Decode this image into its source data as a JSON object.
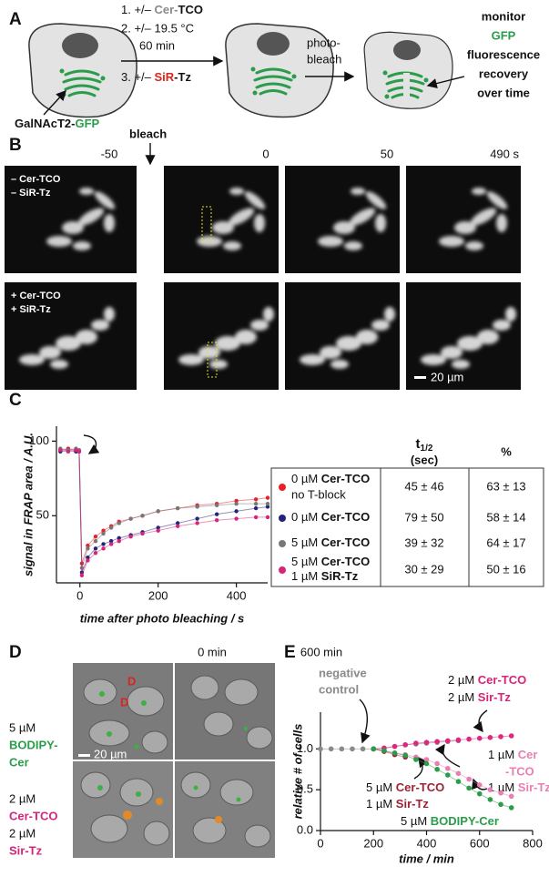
{
  "panel_a": {
    "label": "A",
    "step1": [
      "1.  +/– ",
      "Cer-",
      "TCO"
    ],
    "step2": "2.  +/– 19.5 °C",
    "time": "60 min",
    "step3": [
      "3.  +/– ",
      "SiR",
      "-Tz"
    ],
    "cell_label": [
      "GalNAcT2-",
      "GFP"
    ],
    "bleach_text": [
      "photo-",
      "bleach"
    ],
    "monitor": [
      "monitor",
      "GFP",
      "fluorescence",
      "recovery",
      "over time"
    ]
  },
  "panel_b": {
    "label": "B",
    "bleach": "bleach",
    "times": [
      "-50",
      "0",
      "50",
      "490 s"
    ],
    "rows": [
      [
        "– Cer-TCO",
        "– SiR-Tz"
      ],
      [
        "+ Cer-TCO",
        "+ SiR-Tz"
      ]
    ],
    "scale": "20 µm"
  },
  "panel_c": {
    "label": "C",
    "table": {
      "header": [
        [
          "t",
          "1/2",
          "(sec)"
        ],
        "%"
      ],
      "rows": [
        {
          "label": [
            "0 µM ",
            "Cer-TCO",
            "no T-block"
          ],
          "t_half": "45 ± 46",
          "percent": "63 ± 13"
        },
        {
          "label": [
            "0 µM ",
            "Cer-TCO"
          ],
          "t_half": "79 ± 50",
          "percent": "58 ± 14"
        },
        {
          "label": [
            "5 µM ",
            "Cer-TCO"
          ],
          "t_half": "39 ± 32",
          "percent": "64 ± 17"
        },
        {
          "label": [
            "5 µM ",
            "Cer-TCO",
            "1 µM ",
            "SiR-Tz"
          ],
          "t_half": "30 ± 29",
          "percent": "50 ± 16"
        }
      ]
    }
  },
  "panel_d": {
    "label": "D",
    "times": [
      "0 min",
      "600 min"
    ],
    "marks": [
      "D",
      "D"
    ],
    "scale": "20 µm",
    "rows": [
      [
        "5 µM",
        "BODIPY-",
        "Cer"
      ],
      [
        "2 µM",
        "Cer-TCO",
        "2 µM",
        "Sir-Tz"
      ]
    ]
  },
  "panel_e": {
    "label": "E",
    "notes": [
      [
        "negative",
        "control"
      ],
      [
        "2 µM ",
        "Cer-TCO",
        "2 µM ",
        "Sir-Tz"
      ],
      [
        "1 µM ",
        "Cer",
        "-TCO",
        "1 µM ",
        "Sir-Tz"
      ],
      [
        "5 µM ",
        "Cer-TCO",
        "1 µM ",
        "Sir-Tz"
      ],
      [
        "5 µM ",
        "BODIPY-Cer"
      ]
    ]
  },
  "chart_data": [
    {
      "type": "line",
      "xlabel": "time after photo bleaching / s",
      "ylabel": "signal in FRAP area / A.U.",
      "x": [
        -50,
        -30,
        -10,
        -2,
        5,
        20,
        40,
        60,
        80,
        100,
        130,
        160,
        200,
        250,
        300,
        350,
        400,
        450,
        480
      ],
      "series": [
        {
          "color": "#e8202a",
          "values": [
            94,
            95,
            94,
            93,
            18,
            30,
            36,
            40,
            43,
            46,
            48,
            50,
            53,
            55,
            57,
            58,
            60,
            61,
            62
          ]
        },
        {
          "color": "#23237a",
          "values": [
            93,
            94,
            93,
            93,
            12,
            22,
            28,
            31,
            33,
            35,
            37,
            39,
            42,
            45,
            48,
            51,
            53,
            55,
            56
          ]
        },
        {
          "color": "#777777",
          "values": [
            95,
            94,
            95,
            94,
            15,
            28,
            33,
            38,
            42,
            45,
            48,
            50,
            53,
            55,
            56,
            57,
            58,
            58,
            58
          ]
        },
        {
          "color": "#d6247a",
          "values": [
            94,
            93,
            94,
            93,
            10,
            20,
            25,
            28,
            31,
            33,
            36,
            38,
            40,
            43,
            45,
            47,
            48,
            49,
            49
          ]
        }
      ],
      "xlim": [
        -60,
        480
      ],
      "ylim": [
        5,
        110
      ],
      "xticks": [
        0,
        200,
        400
      ],
      "yticks": [
        50,
        100
      ]
    },
    {
      "type": "line",
      "xlabel": "time / min",
      "ylabel": "relative # of cells",
      "x": [
        0,
        40,
        80,
        120,
        160,
        200,
        240,
        280,
        320,
        360,
        400,
        440,
        480,
        520,
        560,
        600,
        640,
        680,
        720
      ],
      "series": [
        {
          "color": "#8a8a8a",
          "values": [
            1,
            1,
            1,
            1,
            1,
            1,
            1.01,
            1.03,
            1.05,
            1.06,
            1.07,
            1.08,
            1.09,
            1.1,
            null,
            null,
            null,
            null,
            null
          ]
        },
        {
          "color": "#e0267f",
          "values": [
            null,
            null,
            null,
            null,
            null,
            1,
            1.01,
            1.03,
            1.05,
            1.07,
            1.08,
            1.09,
            1.1,
            1.11,
            1.12,
            1.13,
            1.14,
            1.15,
            1.16
          ]
        },
        {
          "color": "#e77fb3",
          "values": [
            null,
            null,
            null,
            null,
            null,
            1,
            0.97,
            0.95,
            0.93,
            0.9,
            0.87,
            0.82,
            0.76,
            0.7,
            0.63,
            0.56,
            0.5,
            0.46,
            0.42
          ]
        },
        {
          "color": "#9b2335",
          "values": [
            null,
            null,
            null,
            null,
            null,
            1,
            0.97,
            0.93,
            0.9,
            null,
            null,
            null,
            null,
            null,
            null,
            null,
            null,
            null,
            null
          ]
        },
        {
          "color": "#2a9d4b",
          "values": [
            null,
            null,
            null,
            null,
            null,
            1,
            0.98,
            0.95,
            0.92,
            0.87,
            0.82,
            0.75,
            0.68,
            0.6,
            0.52,
            0.45,
            0.38,
            0.32,
            0.28
          ]
        }
      ],
      "xlim": [
        0,
        800
      ],
      "ylim": [
        0,
        1.45
      ],
      "xticks": [
        0,
        200,
        400,
        600,
        800
      ],
      "yticks": [
        {
          "value": 0,
          "label": "0.0"
        },
        {
          "value": 0.5,
          "label": "0.5"
        },
        {
          "value": 1,
          "label": "1.0"
        }
      ]
    }
  ]
}
